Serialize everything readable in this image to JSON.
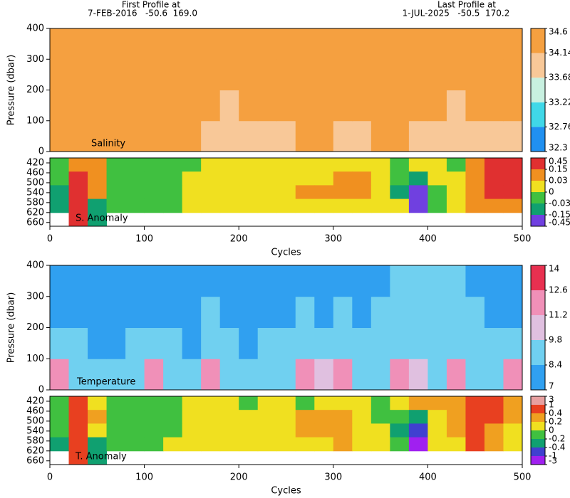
{
  "header": {
    "first_label": "First Profile at",
    "first_info": "7-FEB-2016   -50.6  169.0",
    "last_label": "Last Profile at",
    "last_info": "1-JUL-2025   -50.5  170.2"
  },
  "chart_data": [
    {
      "type": "heatmap",
      "label": "Salinity",
      "ylabel": "Pressure (dbar)",
      "x": [
        10,
        30,
        50,
        70,
        90,
        110,
        130,
        150,
        170,
        190,
        210,
        230,
        250,
        270,
        290,
        310,
        330,
        350,
        370,
        390,
        410,
        430,
        450,
        470,
        490
      ],
      "y": [
        50,
        150,
        250,
        350
      ],
      "z": [
        [
          34.4,
          34.4,
          34.4,
          34.4,
          34.4,
          34.4,
          34.4,
          34.4,
          34.1,
          34.1,
          34.1,
          34.1,
          34.1,
          34.4,
          34.4,
          34.1,
          34.1,
          34.4,
          34.4,
          34.1,
          34.1,
          34.1,
          34.1,
          34.1,
          34.1
        ],
        [
          34.4,
          34.4,
          34.4,
          34.4,
          34.4,
          34.4,
          34.4,
          34.4,
          34.4,
          34.1,
          34.4,
          34.4,
          34.4,
          34.4,
          34.4,
          34.4,
          34.4,
          34.4,
          34.4,
          34.4,
          34.4,
          34.1,
          34.4,
          34.4,
          34.4
        ],
        [
          34.4,
          34.4,
          34.4,
          34.4,
          34.4,
          34.4,
          34.4,
          34.4,
          34.4,
          34.4,
          34.4,
          34.4,
          34.4,
          34.4,
          34.4,
          34.4,
          34.4,
          34.4,
          34.4,
          34.4,
          34.4,
          34.4,
          34.4,
          34.4,
          34.4
        ],
        [
          34.4,
          34.4,
          34.4,
          34.4,
          34.4,
          34.4,
          34.4,
          34.4,
          34.4,
          34.4,
          34.4,
          34.4,
          34.4,
          34.4,
          34.4,
          34.4,
          34.4,
          34.4,
          34.4,
          34.4,
          34.4,
          34.4,
          34.4,
          34.4,
          34.4
        ]
      ],
      "xlim": [
        0,
        500
      ],
      "ylim": [
        400,
        0
      ],
      "yticks": [
        0,
        100,
        200,
        300,
        400
      ],
      "levels": [
        32.3,
        32.76,
        33.22,
        33.68,
        34.14,
        34.6
      ],
      "colors": [
        "#2090f0",
        "#40d8e8",
        "#c8f0e0",
        "#f8c898",
        "#f5a040"
      ]
    },
    {
      "type": "heatmap",
      "label": "S. Anomaly",
      "xlabel": "Cycles",
      "x": [
        10,
        30,
        50,
        70,
        90,
        110,
        130,
        150,
        170,
        190,
        210,
        230,
        250,
        270,
        290,
        310,
        330,
        350,
        370,
        390,
        410,
        430,
        450,
        470,
        490
      ],
      "y": [
        427.5,
        482.5,
        537.5,
        592.5,
        647.5
      ],
      "z": [
        [
          -0.02,
          0.1,
          0.1,
          -0.02,
          -0.02,
          -0.02,
          -0.02,
          -0.01,
          0.01,
          0.02,
          0.01,
          0.02,
          0.02,
          0.01,
          0.02,
          0.02,
          0.01,
          0.01,
          -0.02,
          0.01,
          0.02,
          -0.02,
          0.1,
          0.2,
          0.2
        ],
        [
          -0.02,
          0.2,
          0.1,
          -0.02,
          -0.02,
          -0.02,
          -0.02,
          0.01,
          0.02,
          0.02,
          0.02,
          0.01,
          0.02,
          0.02,
          0.02,
          0.1,
          0.1,
          0.02,
          -0.02,
          -0.05,
          0.01,
          0.02,
          0.1,
          0.2,
          0.2
        ],
        [
          -0.05,
          0.2,
          0.1,
          -0.02,
          -0.02,
          -0.02,
          -0.01,
          0.02,
          0.02,
          0.02,
          0.02,
          0.02,
          0.01,
          0.1,
          0.1,
          0.1,
          0.1,
          0.02,
          -0.05,
          -0.2,
          -0.02,
          0.02,
          0.1,
          0.2,
          0.2
        ],
        [
          -0.05,
          0.2,
          -0.05,
          -0.02,
          -0.02,
          -0.02,
          -0.02,
          0.01,
          0.02,
          0.02,
          0.02,
          0.01,
          0.02,
          0.02,
          0.02,
          0.02,
          0.02,
          0.02,
          0.01,
          -0.2,
          -0.02,
          0.02,
          0.1,
          0.1,
          0.1
        ],
        [
          null,
          0.2,
          -0.05,
          null,
          null,
          null,
          null,
          null,
          null,
          null,
          null,
          null,
          null,
          null,
          null,
          null,
          null,
          null,
          null,
          null,
          null,
          null,
          null,
          null,
          null
        ]
      ],
      "xlim": [
        0,
        500
      ],
      "xticks": [
        0,
        100,
        200,
        300,
        400,
        500
      ],
      "ylim": [
        400,
        675
      ],
      "yticks": [
        420,
        460,
        500,
        540,
        580,
        620,
        660
      ],
      "levels": [
        -0.45,
        -0.15,
        -0.03,
        0,
        0.03,
        0.15,
        0.45
      ],
      "colors": [
        "#7040e0",
        "#10a070",
        "#40c040",
        "#f0e020",
        "#f09020",
        "#e03030"
      ]
    },
    {
      "type": "heatmap",
      "label": "Temperature",
      "ylabel": "Pressure (dbar)",
      "x": [
        10,
        30,
        50,
        70,
        90,
        110,
        130,
        150,
        170,
        190,
        210,
        230,
        250,
        270,
        290,
        310,
        330,
        350,
        370,
        390,
        410,
        430,
        450,
        470,
        490
      ],
      "y": [
        50,
        150,
        250,
        350
      ],
      "z": [
        [
          11.5,
          9.5,
          9.0,
          9.0,
          9.5,
          11.5,
          9.5,
          9.0,
          11.5,
          9.5,
          9.0,
          9.5,
          9.5,
          11.5,
          10.0,
          11.5,
          9.5,
          9.5,
          11.5,
          10.0,
          9.5,
          11.8,
          9.5,
          9.5,
          11.5
        ],
        [
          9.0,
          8.6,
          8.3,
          8.3,
          8.6,
          9.0,
          8.6,
          8.3,
          9.0,
          8.6,
          8.3,
          8.6,
          8.6,
          9.0,
          8.6,
          9.0,
          8.6,
          8.6,
          9.0,
          9.0,
          9.0,
          9.0,
          9.0,
          8.6,
          9.0
        ],
        [
          8.2,
          8.2,
          8.1,
          8.1,
          8.2,
          8.3,
          8.2,
          8.1,
          8.5,
          8.2,
          8.1,
          8.2,
          8.3,
          8.5,
          8.2,
          8.5,
          8.3,
          8.5,
          8.6,
          8.6,
          8.6,
          8.6,
          8.5,
          8.3,
          8.3
        ],
        [
          8.0,
          8.0,
          8.0,
          8.0,
          8.0,
          8.1,
          8.0,
          8.0,
          8.2,
          8.0,
          8.0,
          8.0,
          8.0,
          8.2,
          8.0,
          8.1,
          8.0,
          8.2,
          8.5,
          8.5,
          8.6,
          8.5,
          8.2,
          8.0,
          8.0
        ]
      ],
      "xlim": [
        0,
        500
      ],
      "ylim": [
        400,
        0
      ],
      "yticks": [
        0,
        100,
        200,
        300,
        400
      ],
      "levels": [
        7,
        8.4,
        9.8,
        11.2,
        12.6,
        14
      ],
      "colors": [
        "#30a0f0",
        "#70d0f0",
        "#e0c0e0",
        "#f090b8",
        "#e83050"
      ]
    },
    {
      "type": "heatmap",
      "label": "T. Anomaly",
      "xlabel": "Cycles",
      "x": [
        10,
        30,
        50,
        70,
        90,
        110,
        130,
        150,
        170,
        190,
        210,
        230,
        250,
        270,
        290,
        310,
        330,
        350,
        370,
        390,
        410,
        430,
        450,
        470,
        490
      ],
      "y": [
        427.5,
        482.5,
        537.5,
        592.5,
        647.5
      ],
      "z": [
        [
          -0.1,
          0.5,
          0.1,
          -0.1,
          -0.1,
          -0.1,
          -0.1,
          0.1,
          0.1,
          0.1,
          -0.1,
          0.1,
          0.1,
          -0.1,
          0.1,
          0.1,
          0.1,
          -0.1,
          0.1,
          0.3,
          0.3,
          0.3,
          0.5,
          0.5,
          0.3
        ],
        [
          -0.1,
          0.5,
          0.3,
          -0.1,
          -0.1,
          -0.1,
          -0.1,
          0.1,
          0.1,
          0.1,
          0.1,
          0.1,
          0.1,
          0.3,
          0.3,
          0.3,
          0.1,
          -0.1,
          -0.1,
          -0.3,
          0.1,
          0.3,
          0.5,
          0.5,
          0.3
        ],
        [
          -0.1,
          0.5,
          0.1,
          -0.1,
          -0.1,
          -0.1,
          -0.1,
          0.1,
          0.1,
          0.1,
          0.1,
          0.1,
          0.1,
          0.3,
          0.3,
          0.3,
          0.1,
          0.1,
          -0.3,
          -0.5,
          0.1,
          0.3,
          0.5,
          0.3,
          0.1
        ],
        [
          -0.3,
          0.5,
          -0.3,
          -0.1,
          -0.1,
          -0.1,
          0.1,
          0.1,
          0.1,
          0.1,
          0.1,
          0.1,
          0.1,
          0.1,
          0.1,
          0.3,
          0.1,
          0.1,
          -0.1,
          -1.5,
          0.1,
          0.1,
          0.5,
          0.3,
          0.1
        ],
        [
          null,
          0.5,
          -0.3,
          null,
          null,
          null,
          null,
          null,
          null,
          null,
          null,
          null,
          null,
          null,
          null,
          null,
          null,
          null,
          null,
          null,
          null,
          null,
          null,
          null,
          null
        ]
      ],
      "xlim": [
        0,
        500
      ],
      "xticks": [
        0,
        100,
        200,
        300,
        400,
        500
      ],
      "ylim": [
        400,
        675
      ],
      "yticks": [
        420,
        460,
        500,
        540,
        580,
        620,
        660
      ],
      "levels": [
        -3,
        -1,
        -0.4,
        -0.2,
        0,
        0.2,
        0.4,
        1,
        3
      ],
      "colors": [
        "#a020f0",
        "#4040d0",
        "#10a070",
        "#40c040",
        "#f0e020",
        "#f0a020",
        "#e84020",
        "#e8a0a0"
      ]
    }
  ]
}
